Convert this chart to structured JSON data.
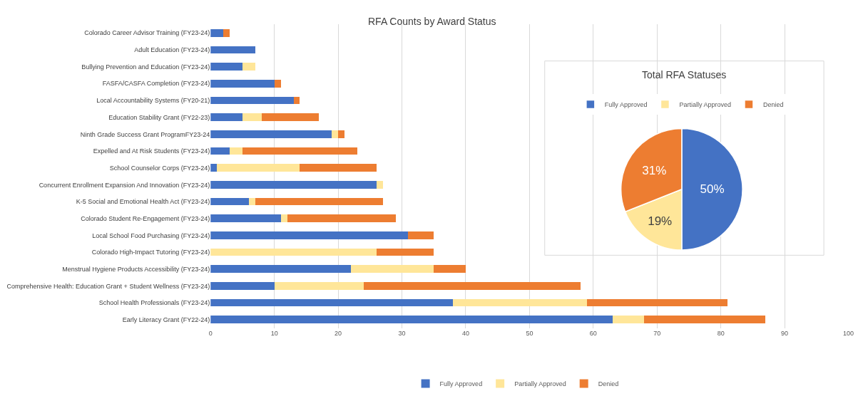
{
  "chart_data": [
    {
      "type": "bar",
      "title": "RFA Counts by Award Status",
      "orientation": "horizontal",
      "stacked": true,
      "categories": [
        "Colorado Career Advisor Training (FY23-24)",
        "Adult Education (FY23-24)",
        "Bullying Prevention and Education (FY23-24)",
        "FASFA/CASFA Completion (FY23-24)",
        "Local Accountability Systems (FY20-21)",
        "Education Stability Grant (FY22-23)",
        "Ninth Grade Success Grant ProgramFY23-24",
        "Expelled and At Risk Students (FY23-24)",
        "School Counselor Corps (FY23-24)",
        "Concurrent Enrollment Expansion And Innovation (FY23-24)",
        "K-5 Social and Emotional Health Act (FY23-24)",
        "Colorado Student Re-Engagement (FY23-24)",
        "Local School Food Purchasing (FY23-24)",
        "Colorado High-Impact Tutoring (FY23-24)",
        "Menstrual Hygiene Products Accessibility (FY23-24)",
        "Comprehensive Health: Education Grant + Student Wellness (FY23-24)",
        "School Health Professionals (FY23-24)",
        "Early Literacy Grant (FY22-24)"
      ],
      "series": [
        {
          "name": "Fully Approved",
          "color": "#4472c4",
          "values": [
            2,
            7,
            5,
            10,
            13,
            5,
            19,
            3,
            1,
            26,
            6,
            11,
            31,
            0,
            22,
            10,
            38,
            63
          ]
        },
        {
          "name": "Partially Approved",
          "color": "#ffe699",
          "values": [
            0,
            0,
            2,
            0,
            0,
            3,
            1,
            2,
            13,
            1,
            1,
            1,
            0,
            26,
            13,
            14,
            21,
            5
          ]
        },
        {
          "name": "Denied",
          "color": "#ed7d31",
          "values": [
            1,
            0,
            0,
            1,
            1,
            9,
            1,
            18,
            12,
            0,
            20,
            17,
            4,
            9,
            5,
            34,
            22,
            19
          ]
        }
      ],
      "xlim": [
        0,
        100
      ],
      "xticks": [
        0,
        10,
        20,
        30,
        40,
        50,
        60,
        70,
        80,
        90,
        100
      ],
      "grid": "x",
      "legend": "bottom"
    },
    {
      "type": "pie",
      "title": "Total RFA Statuses",
      "categories": [
        "Fully Approved",
        "Partially Approved",
        "Denied"
      ],
      "values": [
        50,
        19,
        31
      ],
      "colors": [
        "#4472c4",
        "#ffe699",
        "#ed7d31"
      ],
      "value_labels": [
        "50%",
        "19%",
        "31%"
      ],
      "legend": "top"
    }
  ]
}
